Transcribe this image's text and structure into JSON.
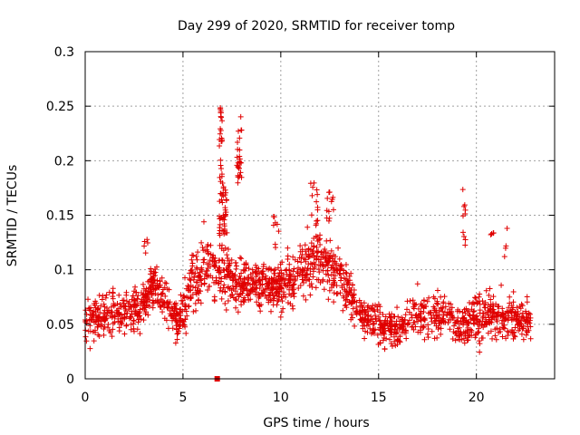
{
  "chart_data": {
    "type": "scatter",
    "title": "Day 299 of 2020, SRMTID for receiver tomp",
    "xlabel": "GPS time / hours",
    "ylabel": "SRMTID / TECUs",
    "xlim": [
      0,
      24
    ],
    "ylim": [
      0,
      0.3
    ],
    "xticks": [
      0,
      5,
      10,
      15,
      20
    ],
    "xtick_labels": [
      "0",
      "5",
      "10",
      "15",
      "20"
    ],
    "yticks": [
      0,
      0.05,
      0.1,
      0.15,
      0.2,
      0.25,
      0.3
    ],
    "ytick_labels": [
      "0",
      "0.05",
      "0.1",
      "0.15",
      "0.2",
      "0.25",
      "0.3"
    ],
    "grid": true,
    "legend": "none",
    "marker": "+",
    "colors": {
      "series": "#e00000",
      "grid": "#a0a0a0",
      "axis": "#000000"
    },
    "series": [
      {
        "name": "SRMTID",
        "profile": [
          [
            0.0,
            0.055,
            0.018
          ],
          [
            1.0,
            0.06,
            0.02
          ],
          [
            2.0,
            0.062,
            0.018
          ],
          [
            2.8,
            0.065,
            0.02
          ],
          [
            3.5,
            0.085,
            0.018
          ],
          [
            4.2,
            0.07,
            0.02
          ],
          [
            4.8,
            0.05,
            0.02
          ],
          [
            5.5,
            0.09,
            0.025
          ],
          [
            6.2,
            0.11,
            0.025
          ],
          [
            6.7,
            0.09,
            0.02
          ],
          [
            7.0,
            0.1,
            0.025
          ],
          [
            7.5,
            0.09,
            0.02
          ],
          [
            8.0,
            0.09,
            0.02
          ],
          [
            9.0,
            0.085,
            0.02
          ],
          [
            10.0,
            0.085,
            0.02
          ],
          [
            11.0,
            0.095,
            0.022
          ],
          [
            12.0,
            0.11,
            0.025
          ],
          [
            13.0,
            0.095,
            0.022
          ],
          [
            14.0,
            0.06,
            0.015
          ],
          [
            15.0,
            0.05,
            0.015
          ],
          [
            16.0,
            0.045,
            0.015
          ],
          [
            17.0,
            0.06,
            0.02
          ],
          [
            18.0,
            0.06,
            0.02
          ],
          [
            19.0,
            0.05,
            0.018
          ],
          [
            20.0,
            0.055,
            0.02
          ],
          [
            21.0,
            0.06,
            0.02
          ],
          [
            22.0,
            0.055,
            0.018
          ],
          [
            22.8,
            0.055,
            0.015
          ]
        ],
        "spikes": [
          {
            "x": [
              6.85,
              7.0
            ],
            "y": [
              0.12,
              0.25
            ],
            "n": 40
          },
          {
            "x": [
              7.0,
              7.25
            ],
            "y": [
              0.13,
              0.18
            ],
            "n": 30
          },
          {
            "x": [
              7.75,
              8.0
            ],
            "y": [
              0.17,
              0.255
            ],
            "n": 28
          },
          {
            "x": [
              11.5,
              11.9
            ],
            "y": [
              0.14,
              0.18
            ],
            "n": 14
          },
          {
            "x": [
              12.3,
              12.7
            ],
            "y": [
              0.14,
              0.175
            ],
            "n": 12
          },
          {
            "x": [
              9.6,
              9.9
            ],
            "y": [
              0.12,
              0.15
            ],
            "n": 8
          },
          {
            "x": [
              19.3,
              19.45
            ],
            "y": [
              0.12,
              0.175
            ],
            "n": 10
          },
          {
            "x": [
              20.7,
              20.9
            ],
            "y": [
              0.12,
              0.135
            ],
            "n": 4
          },
          {
            "x": [
              21.4,
              21.6
            ],
            "y": [
              0.11,
              0.138
            ],
            "n": 4
          },
          {
            "x": [
              3.0,
              3.3
            ],
            "y": [
              0.115,
              0.13
            ],
            "n": 5
          }
        ],
        "total_points": 1900,
        "outlier": {
          "x": 6.75,
          "y": 0.0
        }
      }
    ]
  }
}
